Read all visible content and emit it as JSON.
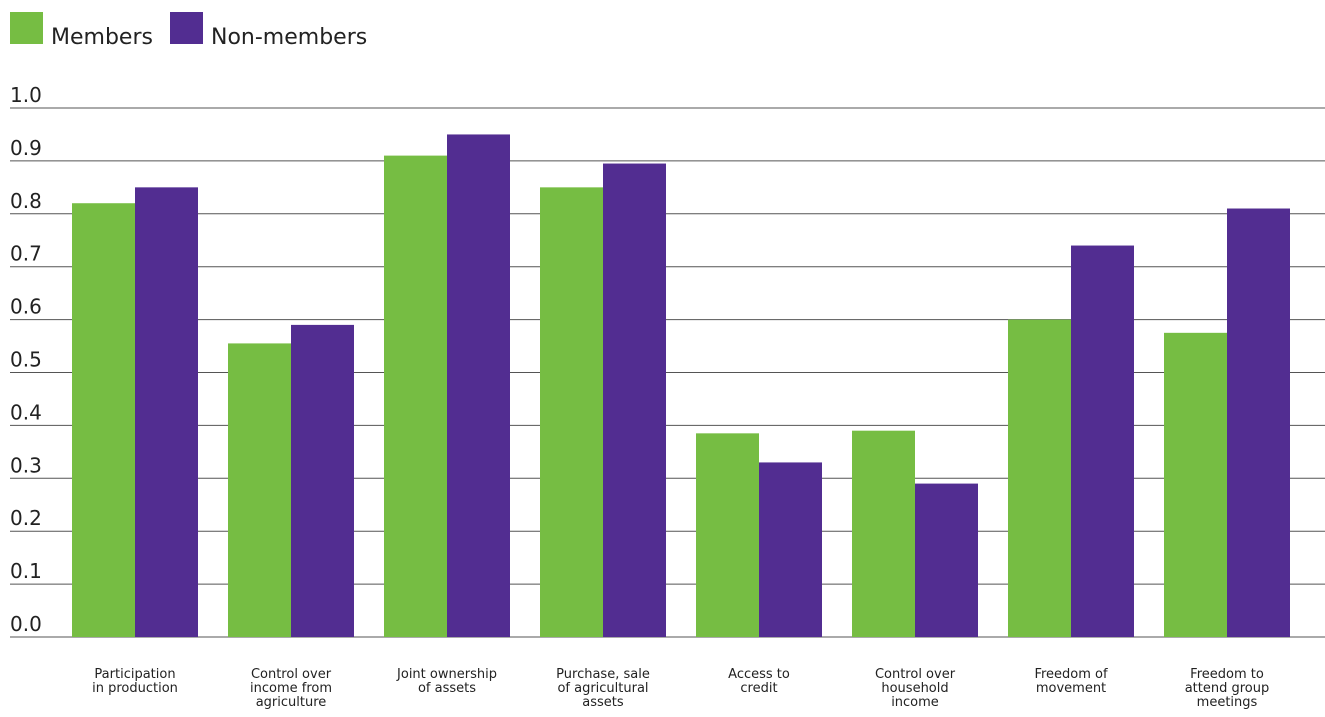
{
  "chart_data": {
    "type": "bar",
    "title": "",
    "xlabel": "",
    "ylabel": "",
    "ylim": [
      0.0,
      1.0
    ],
    "yticks": [
      "0.0",
      "0.1",
      "0.2",
      "0.3",
      "0.4",
      "0.5",
      "0.6",
      "0.7",
      "0.8",
      "0.9",
      "1.0"
    ],
    "grid": true,
    "legend_position": "top-left",
    "categories": [
      [
        "Participation",
        "in production"
      ],
      [
        "Control over",
        "income from",
        "agriculture"
      ],
      [
        "Joint ownership",
        "of assets"
      ],
      [
        "Purchase, sale",
        "of agricultural",
        "assets"
      ],
      [
        "Access to",
        "credit"
      ],
      [
        "Control over",
        "household",
        "income"
      ],
      [
        "Freedom of",
        "movement"
      ],
      [
        "Freedom to",
        "attend group",
        "meetings"
      ]
    ],
    "series": [
      {
        "name": "Members",
        "color": "#76bd43",
        "values": [
          0.82,
          0.555,
          0.91,
          0.85,
          0.385,
          0.39,
          0.6,
          0.575
        ]
      },
      {
        "name": "Non-members",
        "color": "#522d91",
        "values": [
          0.85,
          0.59,
          0.95,
          0.895,
          0.33,
          0.29,
          0.74,
          0.81
        ]
      }
    ]
  }
}
